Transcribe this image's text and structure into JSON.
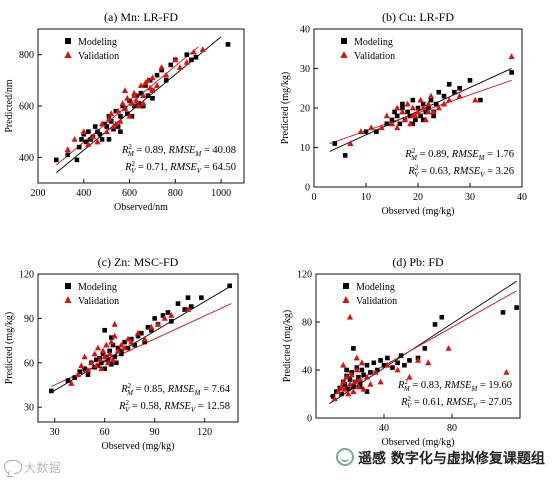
{
  "chart_data": [
    {
      "id": "a",
      "type": "scatter",
      "title": "(a) Mn: LR-FD",
      "xlabel": "Observed/nm",
      "ylabel": "Predicted/nm",
      "xlim": [
        200,
        1100
      ],
      "ylim": [
        300,
        900
      ],
      "xticks": [
        200,
        400,
        600,
        800,
        1000
      ],
      "yticks": [
        400,
        600,
        800
      ],
      "legend": [
        "Modeling",
        "Validation"
      ],
      "legend_position": "top-left",
      "stats": [
        {
          "label": "R",
          "sub": "M",
          "sq": true,
          "value": "= 0.89,",
          "label2": "RMSE",
          "sub2": "M",
          "value2": "= 40.08"
        },
        {
          "label": "R",
          "sub": "V",
          "sq": true,
          "value": "= 0.71,",
          "label2": "RMSE",
          "sub2": "V",
          "value2": "= 64.50"
        }
      ],
      "fit_lines": [
        {
          "name": "1:1 line",
          "color": "#111111",
          "x": [
            280,
            1000
          ],
          "y": [
            340,
            870
          ]
        },
        {
          "name": "fit line",
          "color": "#cc2222",
          "x": [
            280,
            900
          ],
          "y": [
            370,
            830
          ]
        }
      ],
      "series": [
        {
          "name": "Modeling",
          "marker": "square",
          "color": "#000000",
          "x": [
            280,
            330,
            370,
            380,
            390,
            400,
            410,
            420,
            430,
            440,
            450,
            460,
            470,
            480,
            490,
            500,
            510,
            520,
            530,
            540,
            550,
            560,
            570,
            580,
            590,
            600,
            610,
            620,
            630,
            640,
            650,
            660,
            670,
            680,
            690,
            700,
            720,
            740,
            760,
            780,
            800,
            850,
            870,
            890,
            1030,
            510,
            560,
            610,
            650,
            700
          ],
          "y": [
            390,
            410,
            390,
            440,
            470,
            490,
            460,
            500,
            470,
            480,
            520,
            500,
            490,
            470,
            530,
            520,
            560,
            540,
            510,
            580,
            520,
            560,
            600,
            590,
            570,
            620,
            560,
            600,
            640,
            610,
            650,
            600,
            680,
            640,
            700,
            660,
            720,
            740,
            700,
            760,
            780,
            800,
            780,
            790,
            840,
            470,
            500,
            560,
            600,
            630
          ]
        },
        {
          "name": "Validation",
          "marker": "triangle",
          "color": "#dd1111",
          "x": [
            330,
            360,
            400,
            420,
            440,
            460,
            480,
            500,
            510,
            520,
            530,
            540,
            550,
            560,
            570,
            580,
            590,
            600,
            610,
            620,
            630,
            640,
            650,
            660,
            670,
            680,
            690,
            700,
            720,
            740,
            760,
            800,
            820,
            850,
            880,
            920,
            580,
            620,
            660,
            700
          ],
          "y": [
            430,
            470,
            500,
            450,
            480,
            460,
            530,
            500,
            550,
            570,
            520,
            530,
            580,
            540,
            610,
            590,
            630,
            560,
            610,
            650,
            620,
            600,
            680,
            640,
            690,
            700,
            670,
            710,
            680,
            750,
            720,
            780,
            750,
            770,
            810,
            820,
            660,
            640,
            610,
            660
          ]
        }
      ]
    },
    {
      "id": "b",
      "type": "scatter",
      "title": "(b) Cu: LR-FD",
      "xlabel": "Observed (mg/kg)",
      "ylabel": "Predicted (mg/kg)",
      "xlim": [
        0,
        40
      ],
      "ylim": [
        0,
        40
      ],
      "xticks": [
        0,
        10,
        20,
        30,
        40
      ],
      "yticks": [
        0,
        10,
        20,
        30,
        40
      ],
      "legend": [
        "Modeling",
        "Validation"
      ],
      "legend_position": "top-left",
      "stats": [
        {
          "label": "R",
          "sub": "M",
          "sq": true,
          "value": "= 0.89,",
          "label2": "RMSE",
          "sub2": "M",
          "value2": "= 1.76"
        },
        {
          "label": "R",
          "sub": "V",
          "sq": true,
          "value": "= 0.63,",
          "label2": "RMSE",
          "sub2": "V",
          "value2": "= 3.26"
        }
      ],
      "fit_lines": [
        {
          "name": "1:1 line",
          "color": "#111111",
          "x": [
            3,
            38
          ],
          "y": [
            9,
            30
          ]
        },
        {
          "name": "fit line",
          "color": "#cc2222",
          "x": [
            3,
            38
          ],
          "y": [
            11,
            27
          ]
        }
      ],
      "series": [
        {
          "name": "Modeling",
          "marker": "square",
          "color": "#000000",
          "x": [
            4,
            6,
            10,
            12,
            14,
            15,
            15.5,
            16,
            16.5,
            17,
            17.5,
            18,
            18.5,
            19,
            19.5,
            20,
            20.5,
            21,
            21.5,
            22,
            22.5,
            23,
            23.5,
            24,
            25,
            26,
            27,
            28,
            30,
            32,
            38,
            17,
            19,
            21,
            23
          ],
          "y": [
            11,
            8,
            14,
            14,
            16,
            17,
            19,
            18,
            16,
            21,
            17,
            19,
            18,
            22,
            17,
            20,
            18,
            21,
            19,
            20,
            22,
            18,
            21,
            24,
            23,
            26,
            24,
            25,
            27,
            22,
            29,
            20,
            16,
            17,
            19
          ]
        },
        {
          "name": "Validation",
          "marker": "triangle",
          "color": "#dd1111",
          "x": [
            7,
            9,
            11,
            13,
            14,
            15,
            16,
            17,
            17.5,
            18,
            18.5,
            19,
            19.5,
            20,
            20.5,
            21,
            21.5,
            22,
            22.5,
            23,
            24,
            25,
            26,
            28,
            31,
            38,
            16,
            19,
            22
          ],
          "y": [
            11,
            14,
            15,
            15,
            18,
            16,
            20,
            19,
            17,
            21,
            16,
            20,
            18,
            19,
            22,
            20,
            17,
            21,
            23,
            19,
            20,
            21,
            22,
            23,
            22,
            33,
            15,
            18,
            19
          ]
        }
      ]
    },
    {
      "id": "c",
      "type": "scatter",
      "title": "(c) Zn: MSC-FD",
      "xlabel": "Observed (mg/kg)",
      "ylabel": "Predicted (mg/kg)",
      "xlim": [
        20,
        140
      ],
      "ylim": [
        20,
        120
      ],
      "xticks": [
        30,
        60,
        90,
        120
      ],
      "yticks": [
        30,
        60,
        90,
        120
      ],
      "legend": [
        "Modeling",
        "Validation"
      ],
      "legend_position": "top-left",
      "stats": [
        {
          "label": "R",
          "sub": "M",
          "sq": true,
          "value": "= 0.85,",
          "label2": "RMSE",
          "sub2": "M",
          "value2": "= 7.64"
        },
        {
          "label": "R",
          "sub": "V",
          "sq": true,
          "value": "= 0.58,",
          "label2": "RMSE",
          "sub2": "V",
          "value2": "= 12.58"
        }
      ],
      "fit_lines": [
        {
          "name": "1:1 line",
          "color": "#111111",
          "x": [
            28,
            136
          ],
          "y": [
            40,
            112
          ]
        },
        {
          "name": "fit line",
          "color": "#cc2222",
          "x": [
            28,
            136
          ],
          "y": [
            44,
            100
          ]
        }
      ],
      "series": [
        {
          "name": "Modeling",
          "marker": "square",
          "color": "#000000",
          "x": [
            28,
            38,
            42,
            45,
            48,
            50,
            52,
            54,
            55,
            56,
            57,
            58,
            59,
            60,
            61,
            62,
            63,
            64,
            65,
            66,
            67,
            68,
            70,
            72,
            74,
            76,
            78,
            80,
            82,
            84,
            86,
            88,
            90,
            92,
            95,
            98,
            100,
            104,
            108,
            110,
            112,
            118,
            135,
            60,
            64,
            70
          ],
          "y": [
            41,
            48,
            50,
            54,
            56,
            52,
            60,
            57,
            62,
            58,
            63,
            60,
            66,
            56,
            64,
            62,
            68,
            59,
            72,
            64,
            60,
            70,
            66,
            74,
            70,
            76,
            72,
            78,
            80,
            74,
            84,
            82,
            90,
            86,
            92,
            94,
            88,
            100,
            96,
            104,
            98,
            104,
            112,
            82,
            77,
            68
          ]
        },
        {
          "name": "Validation",
          "marker": "triangle",
          "color": "#dd1111",
          "x": [
            40,
            44,
            46,
            48,
            50,
            52,
            54,
            55,
            56,
            57,
            58,
            59,
            60,
            61,
            62,
            63,
            64,
            65,
            66,
            68,
            70,
            72,
            74,
            76,
            80,
            84,
            88,
            92,
            96,
            100,
            110,
            66
          ],
          "y": [
            46,
            52,
            58,
            64,
            55,
            60,
            66,
            58,
            70,
            62,
            56,
            68,
            64,
            72,
            60,
            66,
            74,
            62,
            78,
            68,
            72,
            70,
            76,
            74,
            80,
            76,
            84,
            86,
            90,
            92,
            96,
            86
          ]
        }
      ]
    },
    {
      "id": "d",
      "type": "scatter",
      "title": "(d) Pb: FD",
      "xlabel": "Observed (mg/kg)",
      "ylabel": "Predicted (mg/kg)",
      "xlim": [
        0,
        120
      ],
      "ylim": [
        0,
        120
      ],
      "xticks": [
        40,
        80
      ],
      "yticks": [
        0,
        40,
        80,
        120
      ],
      "legend": [
        "Modeling",
        "Validation"
      ],
      "legend_position": "top-left",
      "stats": [
        {
          "label": "R",
          "sub": "M",
          "sq": true,
          "value": "= 0.83,",
          "label2": "RMSE",
          "sub2": "M",
          "value2": "= 19.60"
        },
        {
          "label": "R",
          "sub": "V",
          "sq": true,
          "value": "= 0.61,",
          "label2": "RMSE",
          "sub2": "V",
          "value2": "= 27.05"
        }
      ],
      "fit_lines": [
        {
          "name": "1:1 line",
          "color": "#111111",
          "x": [
            8,
            118
          ],
          "y": [
            12,
            114
          ]
        },
        {
          "name": "fit line",
          "color": "#cc2222",
          "x": [
            8,
            118
          ],
          "y": [
            18,
            106
          ]
        }
      ],
      "series": [
        {
          "name": "Modeling",
          "marker": "square",
          "color": "#000000",
          "x": [
            10,
            12,
            14,
            15,
            16,
            17,
            18,
            19,
            20,
            21,
            22,
            23,
            24,
            25,
            26,
            27,
            28,
            30,
            32,
            34,
            36,
            38,
            40,
            42,
            45,
            48,
            50,
            52,
            55,
            60,
            64,
            70,
            74,
            110,
            118,
            22,
            26,
            30,
            18
          ],
          "y": [
            18,
            22,
            25,
            20,
            30,
            28,
            35,
            24,
            32,
            38,
            26,
            30,
            42,
            34,
            28,
            40,
            36,
            44,
            38,
            46,
            40,
            48,
            44,
            50,
            42,
            46,
            52,
            44,
            48,
            50,
            58,
            78,
            84,
            88,
            92,
            58,
            26,
            22,
            40
          ]
        },
        {
          "name": "Validation",
          "marker": "triangle",
          "color": "#dd1111",
          "x": [
            11,
            13,
            15,
            16,
            17,
            18,
            19,
            20,
            21,
            22,
            23,
            24,
            25,
            26,
            27,
            28,
            30,
            32,
            35,
            38,
            42,
            48,
            55,
            60,
            66,
            78,
            112,
            20,
            24,
            16
          ],
          "y": [
            16,
            22,
            26,
            30,
            24,
            34,
            20,
            28,
            36,
            22,
            30,
            40,
            26,
            32,
            46,
            24,
            34,
            28,
            38,
            30,
            44,
            40,
            34,
            48,
            46,
            58,
            38,
            84,
            50,
            44
          ]
        }
      ]
    }
  ],
  "watermarks": {
    "left": "大数据",
    "right": "遥感 数字化与虚拟修复课题组"
  }
}
